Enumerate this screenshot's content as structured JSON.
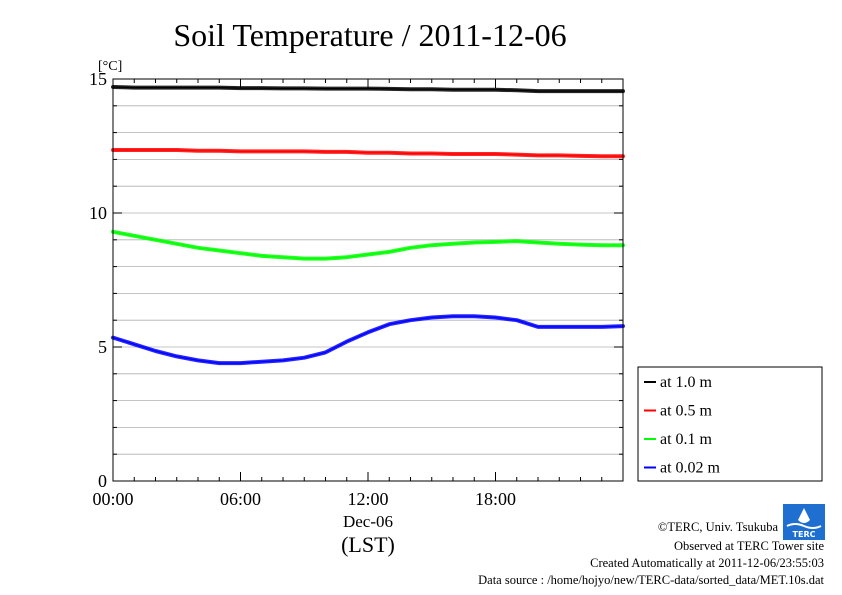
{
  "chart_data": {
    "type": "line",
    "title": "Soil Temperature / 2011-12-06",
    "ylabel": "[°C]",
    "xlabel": "(LST)",
    "date_label": "Dec-06",
    "xlim": [
      0,
      24
    ],
    "ylim": [
      0,
      15
    ],
    "grid": true,
    "x_ticks": [
      {
        "value": 0,
        "label": "00:00"
      },
      {
        "value": 6,
        "label": "06:00"
      },
      {
        "value": 12,
        "label": "12:00"
      },
      {
        "value": 18,
        "label": "18:00"
      }
    ],
    "y_ticks": [
      {
        "value": 0,
        "label": "0"
      },
      {
        "value": 5,
        "label": "5"
      },
      {
        "value": 10,
        "label": "10"
      },
      {
        "value": 15,
        "label": "15"
      }
    ],
    "legend_position": "lower-right-outside",
    "x": [
      0,
      1,
      2,
      3,
      4,
      5,
      6,
      7,
      8,
      9,
      10,
      11,
      12,
      13,
      14,
      15,
      16,
      17,
      18,
      19,
      20,
      21,
      22,
      23,
      24
    ],
    "series": [
      {
        "name": "at 1.0 m",
        "color": "#000000",
        "values": [
          14.7,
          14.68,
          14.68,
          14.68,
          14.68,
          14.68,
          14.66,
          14.66,
          14.65,
          14.65,
          14.64,
          14.64,
          14.64,
          14.63,
          14.62,
          14.62,
          14.6,
          14.6,
          14.6,
          14.58,
          14.55,
          14.55,
          14.55,
          14.55,
          14.55
        ]
      },
      {
        "name": "at 0.5 m",
        "color": "#ff0000",
        "values": [
          12.35,
          12.35,
          12.35,
          12.35,
          12.32,
          12.32,
          12.3,
          12.3,
          12.3,
          12.3,
          12.28,
          12.28,
          12.25,
          12.25,
          12.22,
          12.22,
          12.2,
          12.2,
          12.2,
          12.18,
          12.15,
          12.15,
          12.13,
          12.12,
          12.12
        ]
      },
      {
        "name": "at 0.1 m",
        "color": "#00ff00",
        "values": [
          9.3,
          9.15,
          9.0,
          8.85,
          8.7,
          8.6,
          8.5,
          8.4,
          8.35,
          8.3,
          8.3,
          8.35,
          8.45,
          8.55,
          8.7,
          8.8,
          8.85,
          8.9,
          8.92,
          8.95,
          8.9,
          8.85,
          8.82,
          8.8,
          8.8
        ]
      },
      {
        "name": "at 0.02 m",
        "color": "#0000ff",
        "values": [
          5.35,
          5.1,
          4.85,
          4.65,
          4.5,
          4.4,
          4.4,
          4.45,
          4.5,
          4.6,
          4.8,
          5.2,
          5.55,
          5.85,
          6.0,
          6.1,
          6.15,
          6.15,
          6.1,
          6.0,
          5.75,
          5.75,
          5.75,
          5.75,
          5.78
        ]
      }
    ]
  },
  "footer": {
    "copyright": "©TERC, Univ. Tsukuba",
    "site": "Observed at TERC Tower site",
    "created": "Created Automatically at 2011-12-06/23:55:03",
    "source": "Data source : /home/hojyo/new/TERC-data/sorted_data/MET.10s.dat"
  },
  "logo": {
    "text": "TERC",
    "color": "#1e6fd0"
  }
}
